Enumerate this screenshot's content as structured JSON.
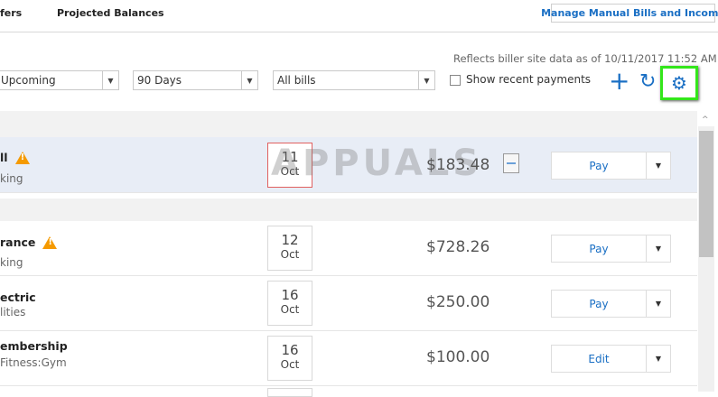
{
  "tabs": [
    {
      "label": "fers"
    },
    {
      "label": "Projected Balances"
    }
  ],
  "manage_button": "Manage Manual Bills and Income",
  "reflects": "Reflects biller site data as of 10/11/2017 11:52 AM",
  "filters": {
    "status": "Upcoming",
    "range": "90 Days",
    "bills": "All bills",
    "show_recent": "Show recent payments",
    "show_recent_checked": false
  },
  "toolbar": {
    "add_icon": "plus-icon",
    "refresh_icon": "refresh-icon",
    "settings_icon": "gear-icon",
    "highlight_color": "#33e61a"
  },
  "bills": [
    {
      "name": "ll",
      "category": "king",
      "warning": true,
      "day": "11",
      "month": "Oct",
      "amount": "$183.48",
      "action": "Pay",
      "has_document": true
    },
    {
      "name": "rance",
      "category": "king",
      "warning": true,
      "day": "12",
      "month": "Oct",
      "amount": "$728.26",
      "action": "Pay"
    },
    {
      "name": "ectric",
      "category": "lities",
      "warning": false,
      "day": "16",
      "month": "Oct",
      "amount": "$250.00",
      "action": "Pay"
    },
    {
      "name": "embership",
      "category": "Fitness:Gym",
      "warning": false,
      "day": "16",
      "month": "Oct",
      "amount": "$100.00",
      "action": "Edit"
    }
  ],
  "watermark": "APPUALS",
  "colors": {
    "accent": "#1a6fc4",
    "warning": "#f59a00",
    "selected_row": "#e8edf6"
  }
}
